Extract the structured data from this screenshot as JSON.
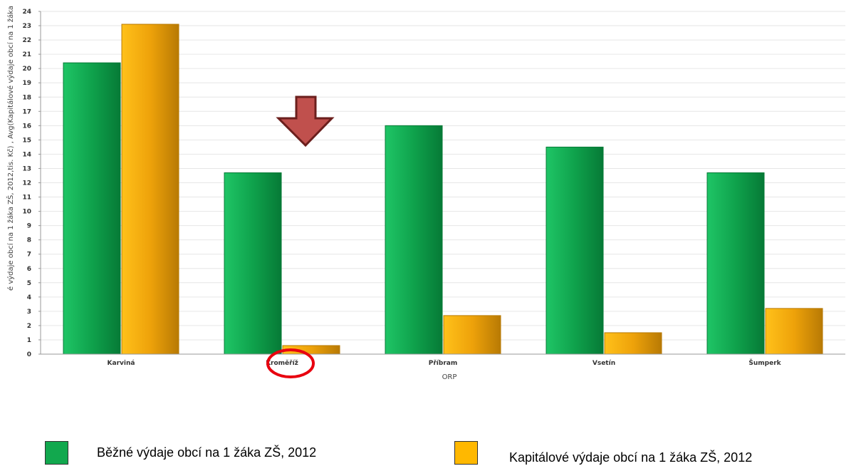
{
  "chart_data": {
    "type": "bar",
    "categories": [
      "Karviná",
      "Kroměříž",
      "Příbram",
      "Vsetín",
      "Šumperk"
    ],
    "series": [
      {
        "name": "Běžné výdaje obcí na 1 žáka ZŠ, 2012",
        "values": [
          20.4,
          12.7,
          16.0,
          14.5,
          12.7
        ]
      },
      {
        "name": "Kapitálové výdaje obcí na 1 žáka ZŠ, 2012",
        "values": [
          23.1,
          0.6,
          2.7,
          1.5,
          3.2
        ]
      }
    ],
    "xlabel": "ORP",
    "ylabel": "é výdaje obcí na 1 žáka ZŠ, 2012,tis. Kč) , Avg(Kapitálové výdaje obcí na 1 žáka",
    "ylim": [
      0,
      24
    ],
    "yticks": [
      "0",
      "1",
      "2",
      "3",
      "4",
      "5",
      "6",
      "7",
      "8",
      "9",
      "10",
      "11",
      "12",
      "13",
      "14",
      "15",
      "16",
      "17",
      "18",
      "19",
      "20",
      "21",
      "22",
      "23",
      "24"
    ],
    "grid": true,
    "legend_position": "bottom",
    "highlighted_category": "Kroměříž",
    "colors": {
      "series1": "#12a84e",
      "series2": "#f5ab0a",
      "arrow": "#c0504d",
      "circle": "#e8000f"
    }
  }
}
